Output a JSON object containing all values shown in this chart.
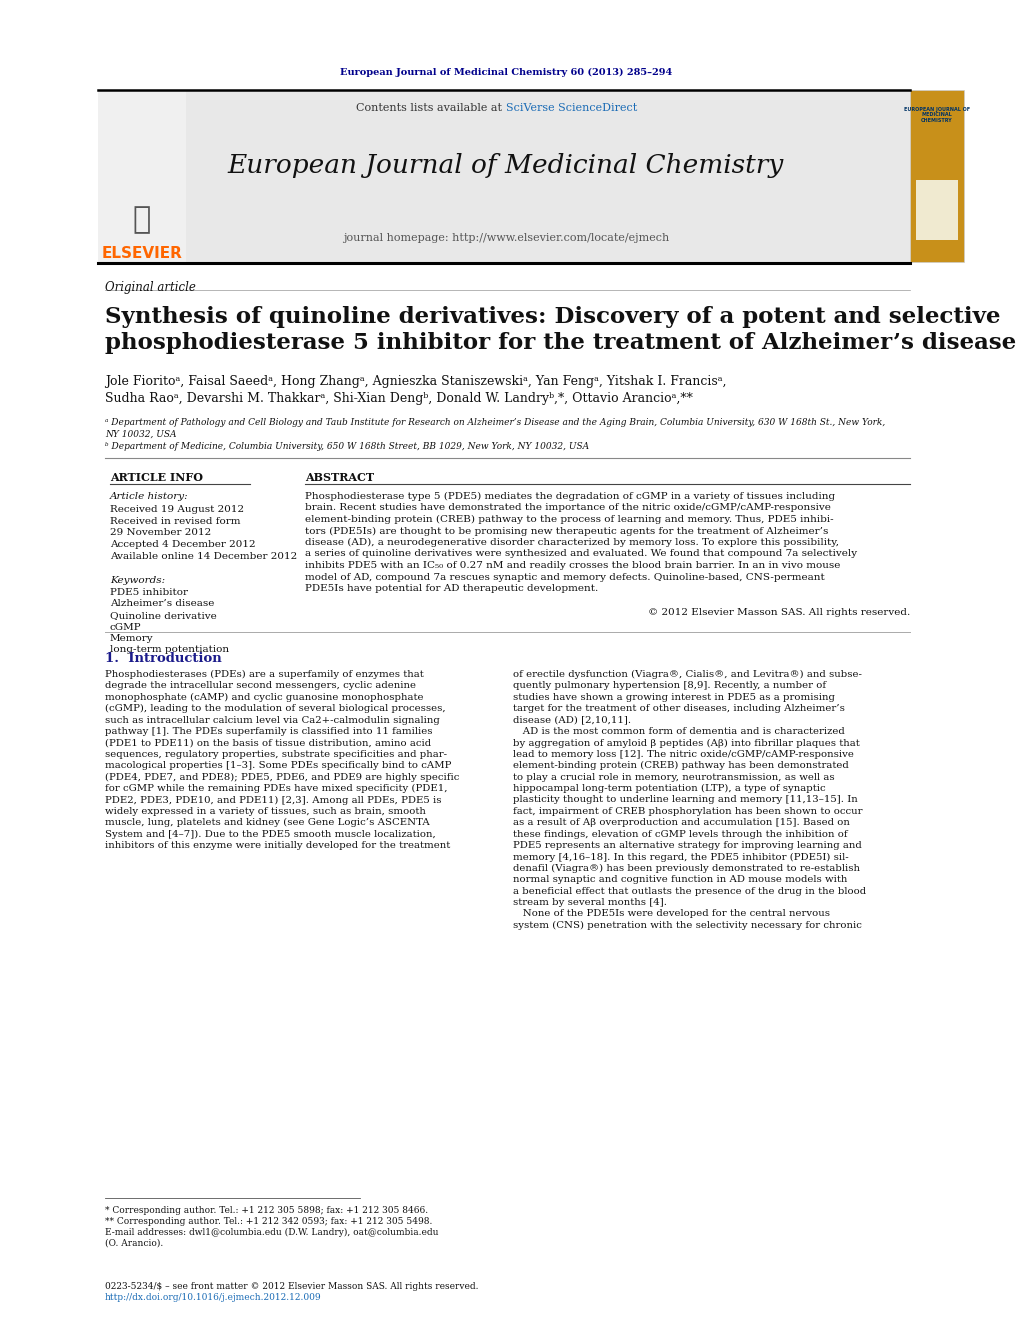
{
  "page_width": 9.92,
  "page_height": 13.23,
  "bg_color": "#ffffff",
  "top_journal_ref": "European Journal of Medicinal Chemistry 60 (2013) 285–294",
  "top_ref_color": "#00008B",
  "header_bg": "#e8e8e8",
  "header_journal_name": "European Journal of Medicinal Chemistry",
  "header_homepage": "journal homepage: http://www.elsevier.com/locate/ejmech",
  "header_contents": "Contents lists available at ",
  "header_sciverse": "SciVerse ScienceDirect",
  "elsevier_color": "#FF6600",
  "article_type": "Original article",
  "title_line1": "Synthesis of quinoline derivatives: Discovery of a potent and selective",
  "title_line2": "phosphodiesterase 5 inhibitor for the treatment of Alzheimer’s disease",
  "author_line1": "Jole Fioritoᵃ, Faisal Saeedᵃ, Hong Zhangᵃ, Agnieszka Staniszewskiᵃ, Yan Fengᵃ, Yitshak I. Francisᵃ,",
  "author_line2": "Sudha Raoᵃ, Devarshi M. Thakkarᵃ, Shi-Xian Dengᵇ, Donald W. Landryᵇ,*, Ottavio Arancioᵃ,**",
  "affil_a": "ᵃ Department of Pathology and Cell Biology and Taub Institute for Research on Alzheimer’s Disease and the Aging Brain, Columbia University, 630 W 168th St., New York,",
  "affil_a2": "NY 10032, USA",
  "affil_b": "ᵇ Department of Medicine, Columbia University, 650 W 168th Street, BB 1029, New York, NY 10032, USA",
  "section_article_info": "ARTICLE INFO",
  "section_abstract": "ABSTRACT",
  "article_history_label": "Article history:",
  "received1": "Received 19 August 2012",
  "received2a": "Received in revised form",
  "received2b": "29 November 2012",
  "accepted": "Accepted 4 December 2012",
  "available": "Available online 14 December 2012",
  "keywords_label": "Keywords:",
  "kw1": "PDE5 inhibitor",
  "kw2": "Alzheimer’s disease",
  "kw3": "Quinoline derivative",
  "kw4": "cGMP",
  "kw5": "Memory",
  "kw6": "long-term potentiation",
  "abstract_line1": "Phosphodiesterase type 5 (PDE5) mediates the degradation of cGMP in a variety of tissues including",
  "abstract_line2": "brain. Recent studies have demonstrated the importance of the nitric oxide/cGMP/cAMP-responsive",
  "abstract_line3": "element-binding protein (CREB) pathway to the process of learning and memory. Thus, PDE5 inhibi-",
  "abstract_line4": "tors (PDE5Is) are thought to be promising new therapeutic agents for the treatment of Alzheimer’s",
  "abstract_line5": "disease (AD), a neurodegenerative disorder characterized by memory loss. To explore this possibility,",
  "abstract_line6": "a series of quinoline derivatives were synthesized and evaluated. We found that compound 7a selectively",
  "abstract_line7": "inhibits PDE5 with an IC₅₀ of 0.27 nM and readily crosses the blood brain barrier. In an in vivo mouse",
  "abstract_line8": "model of AD, compound 7a rescues synaptic and memory defects. Quinoline-based, CNS-permeant",
  "abstract_line9": "PDE5Is have potential for AD therapeutic development.",
  "copyright": "© 2012 Elsevier Masson SAS. All rights reserved.",
  "intro_heading": "1.  Introduction",
  "intro_col1_lines": [
    "Phosphodiesterases (PDEs) are a superfamily of enzymes that",
    "degrade the intracellular second messengers, cyclic adenine",
    "monophosphate (cAMP) and cyclic guanosine monophosphate",
    "(cGMP), leading to the modulation of several biological processes,",
    "such as intracellular calcium level via Ca2+-calmodulin signaling",
    "pathway [1]. The PDEs superfamily is classified into 11 families",
    "(PDE1 to PDE11) on the basis of tissue distribution, amino acid",
    "sequences, regulatory properties, substrate specificities and phar-",
    "macological properties [1–3]. Some PDEs specifically bind to cAMP",
    "(PDE4, PDE7, and PDE8); PDE5, PDE6, and PDE9 are highly specific",
    "for cGMP while the remaining PDEs have mixed specificity (PDE1,",
    "PDE2, PDE3, PDE10, and PDE11) [2,3]. Among all PDEs, PDE5 is",
    "widely expressed in a variety of tissues, such as brain, smooth",
    "muscle, lung, platelets and kidney (see Gene Logic’s ASCENTA",
    "System and [4–7]). Due to the PDE5 smooth muscle localization,",
    "inhibitors of this enzyme were initially developed for the treatment"
  ],
  "intro_col2_lines": [
    "of erectile dysfunction (Viagra®, Cialis®, and Levitra®) and subse-",
    "quently pulmonary hypertension [8,9]. Recently, a number of",
    "studies have shown a growing interest in PDE5 as a promising",
    "target for the treatment of other diseases, including Alzheimer’s",
    "disease (AD) [2,10,11].",
    "   AD is the most common form of dementia and is characterized",
    "by aggregation of amyloid β peptides (Aβ) into fibrillar plaques that",
    "lead to memory loss [12]. The nitric oxide/cGMP/cAMP-responsive",
    "element-binding protein (CREB) pathway has been demonstrated",
    "to play a crucial role in memory, neurotransmission, as well as",
    "hippocampal long-term potentiation (LTP), a type of synaptic",
    "plasticity thought to underline learning and memory [11,13–15]. In",
    "fact, impairment of CREB phosphorylation has been shown to occur",
    "as a result of Aβ overproduction and accumulation [15]. Based on",
    "these findings, elevation of cGMP levels through the inhibition of",
    "PDE5 represents an alternative strategy for improving learning and",
    "memory [4,16–18]. In this regard, the PDE5 inhibitor (PDE5I) sil-",
    "denafil (Viagra®) has been previously demonstrated to re-establish",
    "normal synaptic and cognitive function in AD mouse models with",
    "a beneficial effect that outlasts the presence of the drug in the blood",
    "stream by several months [4].",
    "   None of the PDE5Is were developed for the central nervous",
    "system (CNS) penetration with the selectivity necessary for chronic"
  ],
  "footnote1": "* Corresponding author. Tel.: +1 212 305 5898; fax: +1 212 305 8466.",
  "footnote2": "** Corresponding author. Tel.: +1 212 342 0593; fax: +1 212 305 5498.",
  "footnote3a": "E-mail addresses: dwl1@columbia.edu (D.W. Landry), oat@columbia.edu",
  "footnote3b": "(O. Arancio).",
  "footer1": "0223-5234/$ – see front matter © 2012 Elsevier Masson SAS. All rights reserved.",
  "footer2": "http://dx.doi.org/10.1016/j.ejmech.2012.12.009"
}
